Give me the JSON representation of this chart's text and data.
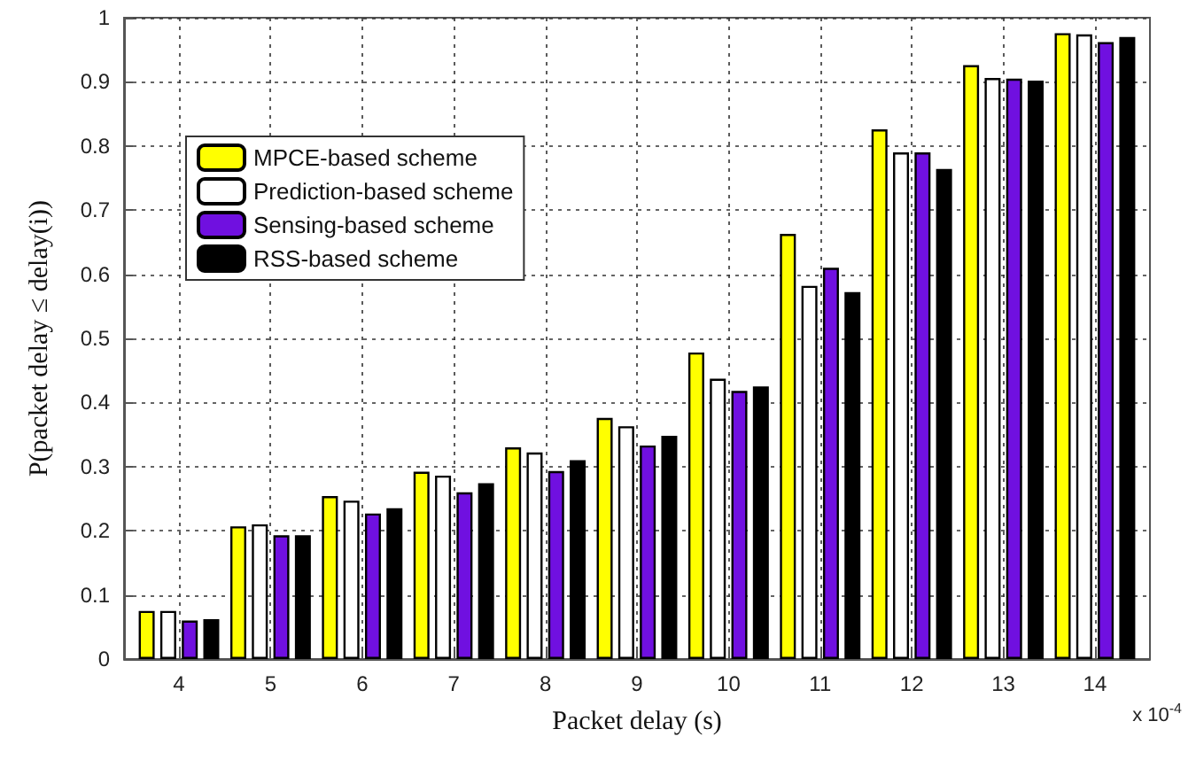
{
  "chart_data": {
    "type": "bar",
    "xlabel": "Packet delay (s)",
    "ylabel": "P(packet delay ≤ delay(i))",
    "x": [
      4,
      5,
      6,
      7,
      8,
      9,
      10,
      11,
      12,
      13,
      14
    ],
    "xlim": [
      3.4,
      14.6
    ],
    "xticks": [
      4,
      5,
      6,
      7,
      8,
      9,
      10,
      11,
      12,
      13,
      14
    ],
    "ylim": [
      0,
      1
    ],
    "yticks": [
      0,
      0.1,
      0.2,
      0.3,
      0.4,
      0.5,
      0.6,
      0.7,
      0.8,
      0.9,
      1
    ],
    "series": [
      {
        "name": "MPCE-based scheme",
        "color": "#ffff00",
        "values": [
          0.075,
          0.207,
          0.254,
          0.292,
          0.33,
          0.376,
          0.478,
          0.663,
          0.826,
          0.926,
          0.976
        ]
      },
      {
        "name": "Prediction-based scheme",
        "color": "#ffffff",
        "values": [
          0.075,
          0.21,
          0.247,
          0.286,
          0.322,
          0.363,
          0.437,
          0.582,
          0.79,
          0.906,
          0.974
        ]
      },
      {
        "name": "Sensing-based scheme",
        "color": "#7010e0",
        "values": [
          0.06,
          0.193,
          0.227,
          0.26,
          0.293,
          0.333,
          0.418,
          0.61,
          0.79,
          0.905,
          0.962
        ]
      },
      {
        "name": "RSS-based scheme",
        "color": "#000000",
        "values": [
          0.062,
          0.193,
          0.235,
          0.274,
          0.31,
          0.348,
          0.425,
          0.572,
          0.764,
          0.902,
          0.97
        ]
      }
    ],
    "annotations": [
      "x 10$^{-4}$"
    ],
    "grid": true,
    "legend": "top left"
  }
}
